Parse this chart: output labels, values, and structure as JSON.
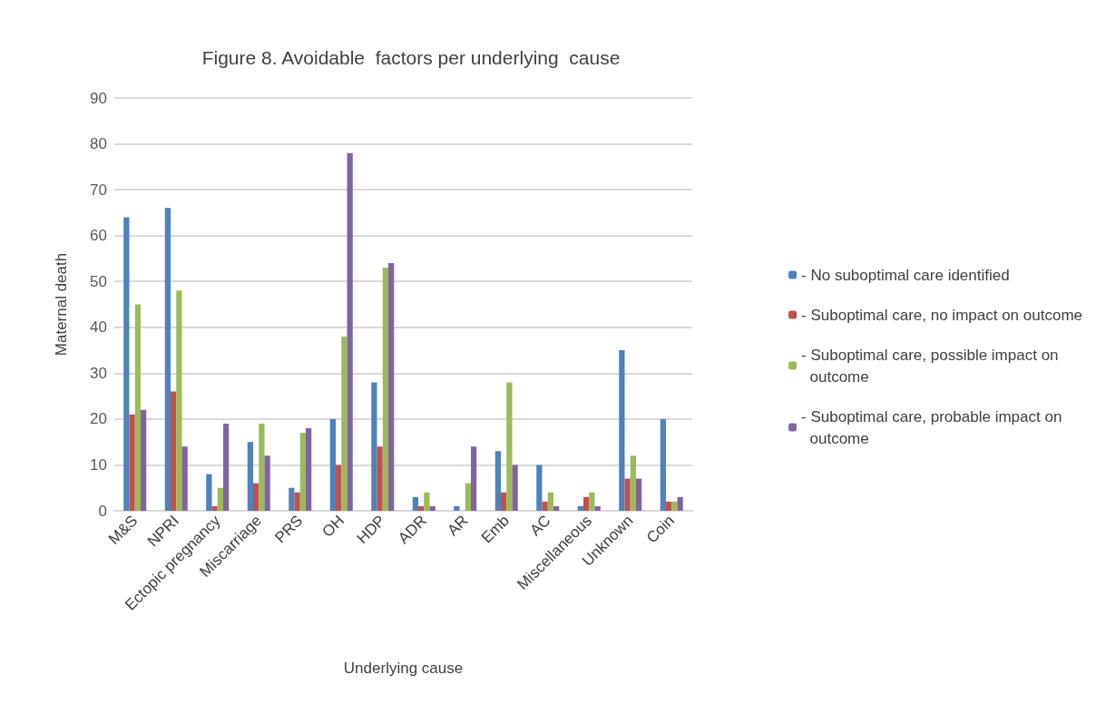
{
  "chart_data": {
    "type": "bar",
    "title": "Figure 8. Avoidable  factors per underlying  cause",
    "xlabel": "Underlying cause",
    "ylabel": "Maternal death",
    "categories": [
      "M&S",
      "NPRI",
      "Ectopic pregnancy",
      "Miscarriage",
      "PRS",
      "OH",
      "HDP",
      "ADR",
      "AR",
      "Emb",
      "AC",
      "Miscellaneous",
      "Unknown",
      "Coin"
    ],
    "series": [
      {
        "name": " - No suboptimal care identified",
        "color": "#4f81bd",
        "values": [
          64,
          66,
          8,
          15,
          5,
          20,
          28,
          3,
          1,
          13,
          10,
          1,
          35,
          20
        ]
      },
      {
        "name": " - Suboptimal care, no impact on outcome",
        "color": "#c0504d",
        "values": [
          21,
          26,
          1,
          6,
          4,
          10,
          14,
          1,
          0,
          4,
          2,
          3,
          7,
          2
        ]
      },
      {
        "name": " - Suboptimal care, possible impact on outcome",
        "color": "#9bbb59",
        "values": [
          45,
          48,
          5,
          19,
          17,
          38,
          53,
          4,
          6,
          28,
          4,
          4,
          12,
          2
        ]
      },
      {
        "name": " - Suboptimal care, probable impact on outcome",
        "color": "#8064a2",
        "values": [
          22,
          14,
          19,
          12,
          18,
          78,
          54,
          1,
          14,
          10,
          1,
          1,
          7,
          3
        ]
      }
    ],
    "ylim": [
      0,
      90
    ],
    "yticks": [
      0,
      10,
      20,
      30,
      40,
      50,
      60,
      70,
      80,
      90
    ],
    "grid": "y",
    "legend": "right"
  }
}
